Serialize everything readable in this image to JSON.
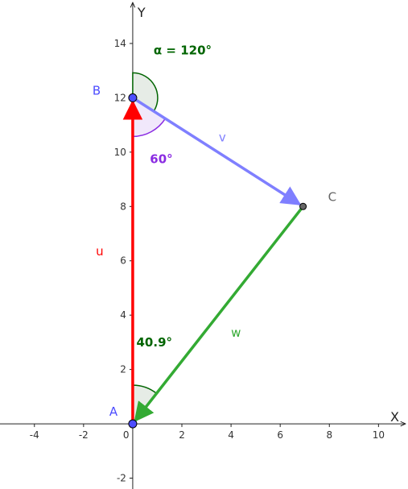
{
  "axes": {
    "x_label": "X",
    "y_label": "Y",
    "x_ticks": [
      {
        "v": -4,
        "label": "-4"
      },
      {
        "v": -2,
        "label": "-2"
      },
      {
        "v": 0,
        "label": "0"
      },
      {
        "v": 2,
        "label": "2"
      },
      {
        "v": 4,
        "label": "4"
      },
      {
        "v": 6,
        "label": "6"
      },
      {
        "v": 8,
        "label": "8"
      },
      {
        "v": 10,
        "label": "10"
      }
    ],
    "y_ticks": [
      {
        "v": -2,
        "label": "-2"
      },
      {
        "v": 2,
        "label": "2"
      },
      {
        "v": 4,
        "label": "4"
      },
      {
        "v": 6,
        "label": "6"
      },
      {
        "v": 8,
        "label": "8"
      },
      {
        "v": 10,
        "label": "10"
      },
      {
        "v": 12,
        "label": "12"
      },
      {
        "v": 14,
        "label": "14"
      }
    ],
    "x_range": [
      -5.4,
      11.2
    ],
    "y_range": [
      -2.4,
      15.6
    ]
  },
  "points": {
    "A": {
      "label": "A",
      "x": 0,
      "y": 0,
      "color": "#4d4dff"
    },
    "B": {
      "label": "B",
      "x": 0,
      "y": 12,
      "color": "#4d4dff"
    },
    "C": {
      "label": "C",
      "x": 6.93,
      "y": 8,
      "color": "#666666"
    }
  },
  "vectors": {
    "u": {
      "label": "u",
      "from": "A",
      "to": "B",
      "color": "#ff0000"
    },
    "v": {
      "label": "v",
      "from": "B",
      "to": "C",
      "color": "#7f7fff"
    },
    "w": {
      "label": "w",
      "from": "C",
      "to": "A",
      "color": "#33aa33"
    }
  },
  "angles": {
    "alpha": {
      "label": "α = 120°",
      "color": "#006400"
    },
    "at_B": {
      "label": "60°",
      "color": "#8a2be2"
    },
    "at_A": {
      "label": "40.9°",
      "color": "#006400"
    }
  }
}
